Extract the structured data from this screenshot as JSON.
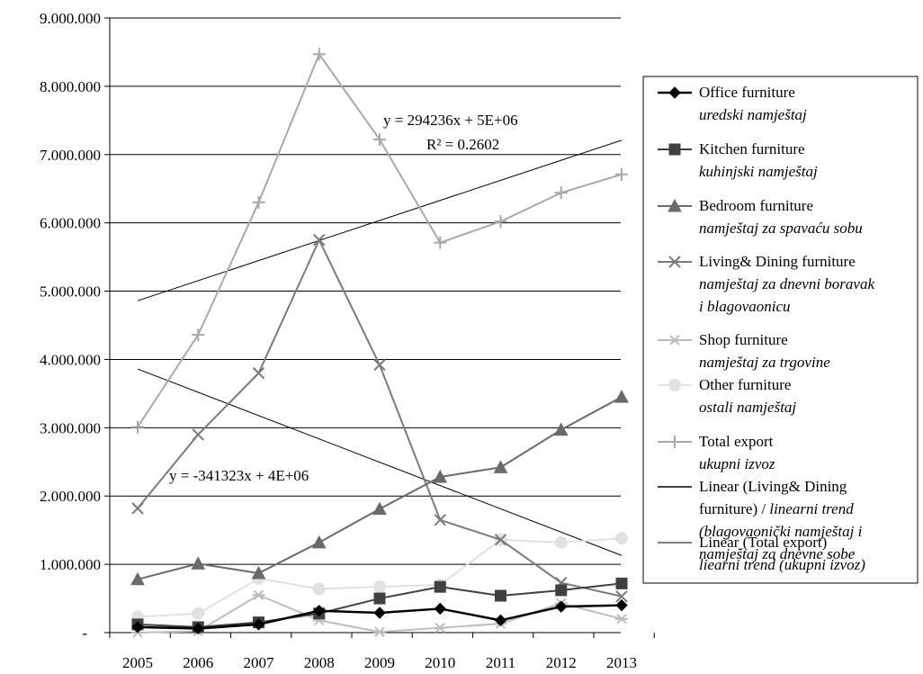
{
  "chart_data": {
    "type": "line",
    "x": [
      2005,
      2006,
      2007,
      2008,
      2009,
      2010,
      2011,
      2012,
      2013
    ],
    "ylim": [
      0,
      9000000
    ],
    "y_ticks": [
      0,
      1000000,
      2000000,
      3000000,
      4000000,
      5000000,
      6000000,
      7000000,
      8000000,
      9000000
    ],
    "y_tick_labels": [
      "-",
      "1.000.000",
      "2.000.000",
      "3.000.000",
      "4.000.000",
      "5.000.000",
      "6.000.000",
      "7.000.000",
      "8.000.000",
      "9.000.000"
    ],
    "x_tick_labels": [
      "2005",
      "2006",
      "2007",
      "2008",
      "2009",
      "2010",
      "2011",
      "2012",
      "2013"
    ],
    "grid": "horizontal",
    "legend_position": "right",
    "series": [
      {
        "key": "office",
        "name": "Office furniture",
        "name_sub": "uredski namještaj",
        "marker": "diamond",
        "color": "#000000",
        "width": 2.5,
        "values": [
          80000,
          60000,
          120000,
          320000,
          290000,
          350000,
          180000,
          380000,
          400000
        ]
      },
      {
        "key": "kitchen",
        "name": "Kitchen furniture",
        "name_sub": "kuhinjski namještaj",
        "marker": "square",
        "color": "#404040",
        "width": 2,
        "values": [
          120000,
          80000,
          150000,
          280000,
          500000,
          670000,
          540000,
          620000,
          720000
        ]
      },
      {
        "key": "bedroom",
        "name": "Bedroom furniture",
        "name_sub": "namještaj za spavaću sobu",
        "marker": "triangle",
        "color": "#6a6a6a",
        "width": 2,
        "values": [
          780000,
          1010000,
          870000,
          1320000,
          1810000,
          2280000,
          2420000,
          2970000,
          3450000
        ]
      },
      {
        "key": "living",
        "name": "Living& Dining furniture",
        "name_sub": "namještaj za dnevni boravak",
        "name_sub2": "i blagovaonicu",
        "marker": "x",
        "color": "#7a7a7a",
        "width": 2,
        "values": [
          1820000,
          2900000,
          3800000,
          5750000,
          3920000,
          1650000,
          1360000,
          730000,
          530000
        ]
      },
      {
        "key": "shop",
        "name": "Shop furniture",
        "name_sub": "namještaj za trgovine",
        "marker": "star",
        "color": "#bdbdbd",
        "width": 2,
        "values": [
          0,
          20000,
          550000,
          180000,
          10000,
          70000,
          130000,
          430000,
          200000
        ]
      },
      {
        "key": "other",
        "name": "Other furniture",
        "name_sub": "ostali namještaj",
        "marker": "circle",
        "color": "#e1e1e1",
        "width": 2,
        "values": [
          230000,
          280000,
          790000,
          640000,
          670000,
          700000,
          1360000,
          1320000,
          1380000
        ]
      },
      {
        "key": "total",
        "name": "Total export",
        "name_sub": "ukupni izvoz",
        "marker": "plus",
        "color": "#a8a8a8",
        "width": 2,
        "values": [
          3010000,
          4360000,
          6300000,
          8470000,
          7220000,
          5710000,
          6020000,
          6440000,
          6710000
        ]
      }
    ],
    "trendlines": [
      {
        "key": "trend-living",
        "series": "living",
        "color": "#000000",
        "start": 3860000,
        "end": 1130000,
        "equation": "y = -341323x + 4E+06",
        "legend_lines": [
          "Linear (Living& Dining",
          "furniture) / linearni trend",
          "(blagovaonički namještaj i",
          "namještaj za dnevne sobe"
        ]
      },
      {
        "key": "trend-total",
        "series": "total",
        "color": "#000000",
        "start": 4860000,
        "end": 7210000,
        "equation": "y = 294236x + 5E+06",
        "r2": "R² = 0.2602",
        "legend_lines": [
          "Linear (Total export)",
          "liearni trend (ukupni izvoz)"
        ]
      }
    ]
  }
}
